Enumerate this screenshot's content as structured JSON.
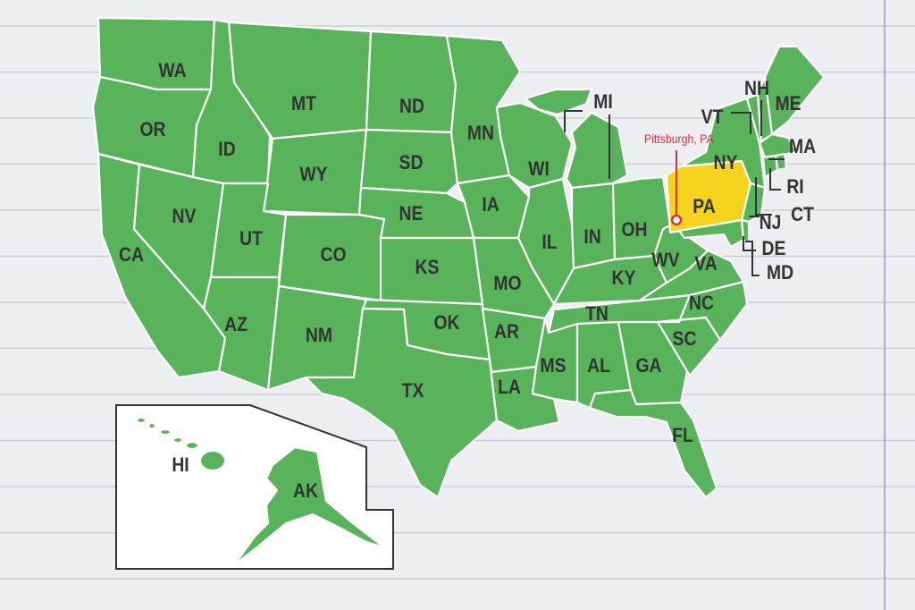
{
  "colors": {
    "state_fill": "#58b35b",
    "highlight_fill": "#f6d41d",
    "label_text": "#333333",
    "pin": "#d9323c",
    "paper": "#eceef1",
    "rule_line": "#c9ccd8",
    "margin_line": "#b89cc8"
  },
  "highlighted_state": "PA",
  "pin": {
    "label": "Pittsburgh, PA",
    "icon": "location-pin-circle-icon"
  },
  "states": [
    "WA",
    "OR",
    "CA",
    "NV",
    "ID",
    "MT",
    "WY",
    "UT",
    "CO",
    "AZ",
    "NM",
    "ND",
    "SD",
    "NE",
    "KS",
    "OK",
    "TX",
    "MN",
    "IA",
    "MO",
    "AR",
    "LA",
    "WI",
    "IL",
    "MI",
    "IN",
    "OH",
    "KY",
    "TN",
    "MS",
    "AL",
    "GA",
    "FL",
    "SC",
    "NC",
    "VA",
    "WV",
    "PA",
    "NY",
    "VT",
    "NH",
    "ME",
    "MA",
    "RI",
    "CT",
    "NJ",
    "DE",
    "MD",
    "HI",
    "AK"
  ]
}
